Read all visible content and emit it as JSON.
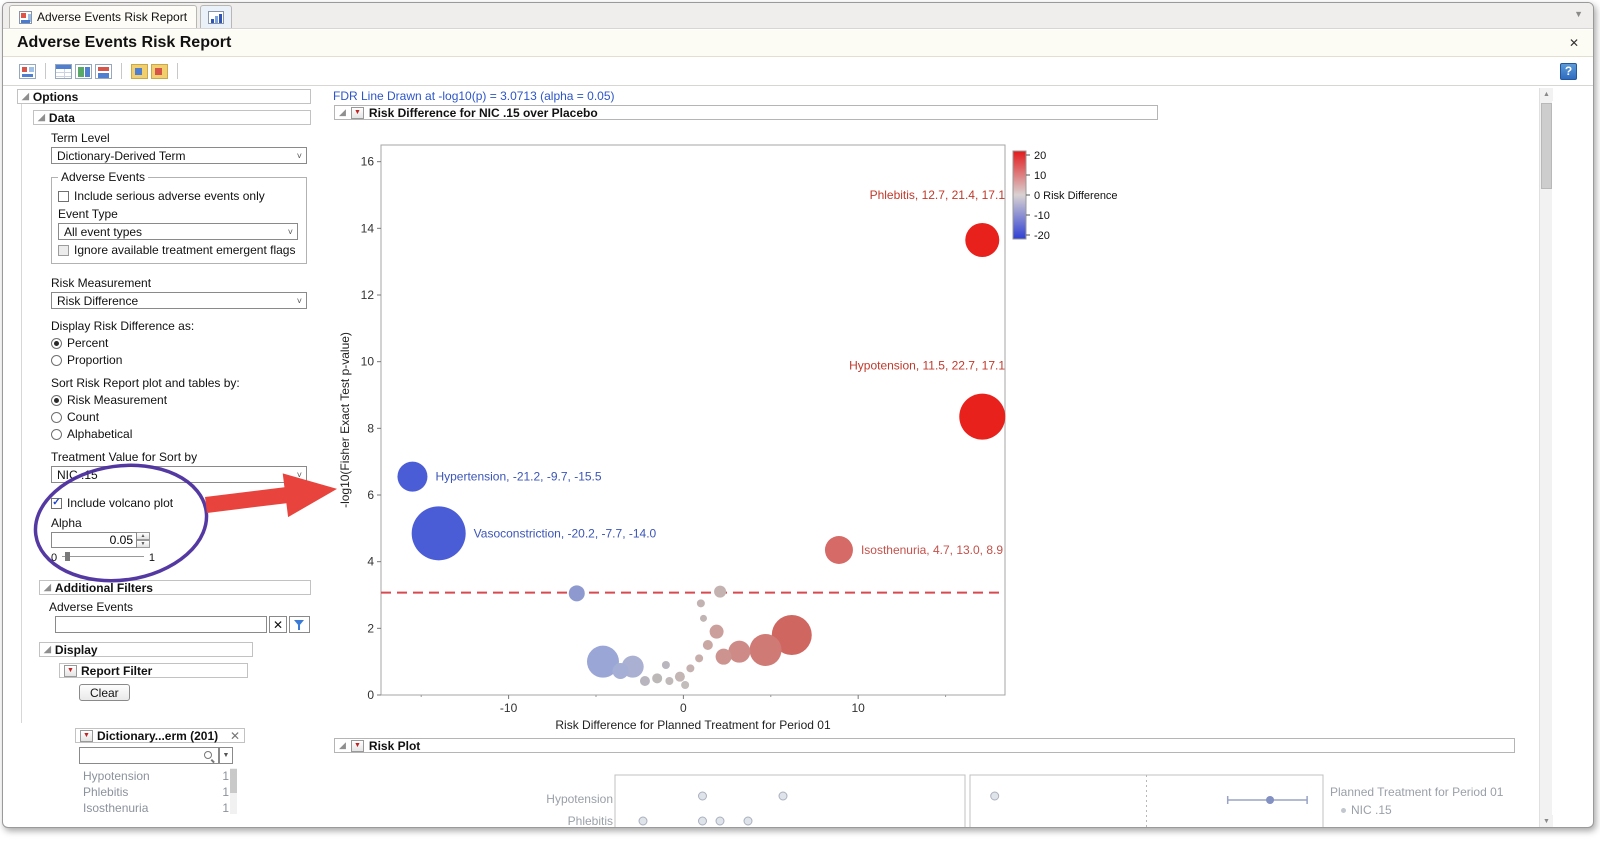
{
  "icons": {
    "disclosure_open": "◢",
    "red_triangle": "▼",
    "dropdown_chevron": "˅",
    "close": "✕",
    "check": "✓",
    "spinner_up": "▲",
    "spinner_down": "▼",
    "scroll_up": "▲",
    "scroll_down": "▼",
    "search_dropdown": "▼",
    "tab_overflow": "▼"
  },
  "tabs": {
    "tab1_label": "Adverse Events Risk Report"
  },
  "header": {
    "title": "Adverse Events Risk Report",
    "help_glyph": "?"
  },
  "sidebar": {
    "options_title": "Options",
    "data": {
      "title": "Data",
      "term_level_label": "Term Level",
      "term_level_value": "Dictionary-Derived Term",
      "adverse_events_group_title": "Adverse Events",
      "serious_only_label": "Include serious adverse events only",
      "event_type_label": "Event Type",
      "event_type_value": "All event types",
      "ignore_flags_label": "Ignore available treatment emergent flags",
      "risk_measurement_label": "Risk Measurement",
      "risk_measurement_value": "Risk Difference",
      "display_as_label": "Display Risk Difference as:",
      "display_option_1": "Percent",
      "display_option_2": "Proportion",
      "sort_label": "Sort Risk Report plot and tables by:",
      "sort_option_1": "Risk Measurement",
      "sort_option_2": "Count",
      "sort_option_3": "Alphabetical",
      "treatment_label": "Treatment Value for Sort by",
      "treatment_value": "NIC .15",
      "volcano_checkbox_label": "Include volcano plot",
      "alpha_label": "Alpha",
      "alpha_value": "0.05",
      "slider_min": "0",
      "slider_max": "1"
    },
    "additional_filters": {
      "title": "Additional Filters",
      "adverse_events_label": "Adverse Events"
    },
    "display": {
      "title": "Display",
      "report_filter_title": "Report Filter",
      "clear_button": "Clear",
      "dictionary_panel_title": "Dictionary...erm (201)",
      "list": [
        {
          "label": "Hypotension",
          "count": "1"
        },
        {
          "label": "Phlebitis",
          "count": "1"
        },
        {
          "label": "Isosthenuria",
          "count": "1"
        }
      ]
    }
  },
  "main": {
    "fdr_note": "FDR Line Drawn at -log10(p) = 3.0713 (alpha = 0.05)",
    "volcano_section_title": "Risk Difference for NIC .15 over Placebo",
    "risk_plot_section_title": "Risk Plot",
    "risk_plot": {
      "row_labels": [
        "Hypotension",
        "Phlebitis"
      ],
      "legend_title": "Planned Treatment for Period 01",
      "legend_item": "NIC .15"
    }
  },
  "chart_data": [
    {
      "type": "scatter",
      "subtype": "volcano",
      "title": "Risk Difference for NIC .15 over Placebo",
      "xlabel": "Risk Difference for Planned Treatment for Period 01",
      "ylabel": "-log10(Fisher Exact Test p-value)",
      "xlim": [
        -17.3,
        18.4
      ],
      "ylim": [
        0,
        16.5
      ],
      "x_ticks": [
        -10,
        0,
        10
      ],
      "x_minor_ticks": [
        -15,
        -5,
        5,
        15
      ],
      "y_ticks": [
        0,
        2,
        4,
        6,
        8,
        10,
        12,
        14,
        16
      ],
      "grid": false,
      "fdr_line": {
        "y": 3.0713,
        "color": "#d84a50",
        "style": "dashed"
      },
      "color_legend": {
        "title": "Risk Difference",
        "ticks": [
          20,
          10,
          0,
          -10,
          -20
        ],
        "top_color": "#e31a1c",
        "mid_color": "#d9d2d2",
        "bottom_color": "#2f3fd3"
      },
      "labeled_points": [
        {
          "name": "Phlebitis",
          "label": "Phlebitis, 12.7, 21.4, 17.1",
          "x": 17.1,
          "y": 13.65,
          "r": 17,
          "color": "#e8211c",
          "label_color": "#c0392b",
          "label_side": "above-left"
        },
        {
          "name": "Hypotension",
          "label": "Hypotension, 11.5, 22.7, 17.1",
          "x": 17.1,
          "y": 8.35,
          "r": 23,
          "color": "#e8211c",
          "label_color": "#c0392b",
          "label_side": "above-left"
        },
        {
          "name": "Hypertension",
          "label": "Hypertension, -21.2, -9.7, -15.5",
          "x": -15.5,
          "y": 6.55,
          "r": 15,
          "color": "#4a5cd6",
          "label_color": "#3b55b8",
          "label_side": "right"
        },
        {
          "name": "Vasoconstriction",
          "label": "Vasoconstriction, -20.2, -7.7, -14.0",
          "x": -14.0,
          "y": 4.85,
          "r": 27,
          "color": "#4a5cd6",
          "label_color": "#3b55b8",
          "label_side": "right"
        },
        {
          "name": "Isosthenuria",
          "label": "Isosthenuria, 4.7, 13.0, 8.9",
          "x": 8.9,
          "y": 4.35,
          "r": 14,
          "color": "#d66a66",
          "label_color": "#c4514a",
          "label_side": "right"
        }
      ],
      "points": [
        {
          "x": -6.1,
          "y": 3.05,
          "r": 8,
          "c": "#8e99cf"
        },
        {
          "x": 2.1,
          "y": 3.1,
          "r": 6,
          "c": "#c4b2b0"
        },
        {
          "x": 1.0,
          "y": 2.75,
          "r": 4,
          "c": "#c2b2b2"
        },
        {
          "x": 1.15,
          "y": 2.3,
          "r": 3.5,
          "c": "#c0b4b4"
        },
        {
          "x": -4.6,
          "y": 1.0,
          "r": 16,
          "c": "#9aa6d6"
        },
        {
          "x": -3.6,
          "y": 0.72,
          "r": 8,
          "c": "#a5aed4"
        },
        {
          "x": -2.9,
          "y": 0.85,
          "r": 11,
          "c": "#a9b0d2"
        },
        {
          "x": -2.2,
          "y": 0.42,
          "r": 5,
          "c": "#b9b5bf"
        },
        {
          "x": -1.5,
          "y": 0.5,
          "r": 5,
          "c": "#bdb8b8"
        },
        {
          "x": -1.0,
          "y": 0.9,
          "r": 4,
          "c": "#bab6c0"
        },
        {
          "x": -0.8,
          "y": 0.42,
          "r": 4,
          "c": "#c0baba"
        },
        {
          "x": -0.2,
          "y": 0.55,
          "r": 5,
          "c": "#c3b6b4"
        },
        {
          "x": 0.1,
          "y": 0.3,
          "r": 4,
          "c": "#c2bcba"
        },
        {
          "x": 0.4,
          "y": 0.8,
          "r": 4,
          "c": "#c5b2b0"
        },
        {
          "x": 0.9,
          "y": 1.1,
          "r": 4,
          "c": "#c7aeab"
        },
        {
          "x": 1.4,
          "y": 1.5,
          "r": 5,
          "c": "#c9a8a4"
        },
        {
          "x": 1.9,
          "y": 1.9,
          "r": 7,
          "c": "#cb9f9b"
        },
        {
          "x": 2.3,
          "y": 1.15,
          "r": 8,
          "c": "#cc938f"
        },
        {
          "x": 3.2,
          "y": 1.3,
          "r": 11,
          "c": "#ce8a86"
        },
        {
          "x": 4.7,
          "y": 1.35,
          "r": 16,
          "c": "#d07a76"
        },
        {
          "x": 6.2,
          "y": 1.8,
          "r": 20,
          "c": "#cf6660"
        }
      ]
    },
    {
      "type": "scatter",
      "title": "Risk Plot",
      "row_labels": [
        "Hypotension",
        "Phlebitis"
      ],
      "legend_title": "Planned Treatment for Period 01",
      "legend_items": [
        "NIC .15"
      ],
      "panels": [
        {
          "points": [
            {
              "row": 0,
              "xfrac": 0.25
            },
            {
              "row": 0,
              "xfrac": 0.48
            },
            {
              "row": 1,
              "xfrac": 0.08
            },
            {
              "row": 1,
              "xfrac": 0.25
            },
            {
              "row": 1,
              "xfrac": 0.3
            },
            {
              "row": 1,
              "xfrac": 0.38
            }
          ]
        },
        {
          "points": [
            {
              "row": 0,
              "xfrac": 0.07
            }
          ],
          "dashed_line_xfrac": 0.5,
          "interval": {
            "row": 0,
            "from_xfrac": 0.73,
            "to_xfrac": 0.955,
            "center_xfrac": 0.85
          }
        }
      ]
    }
  ]
}
